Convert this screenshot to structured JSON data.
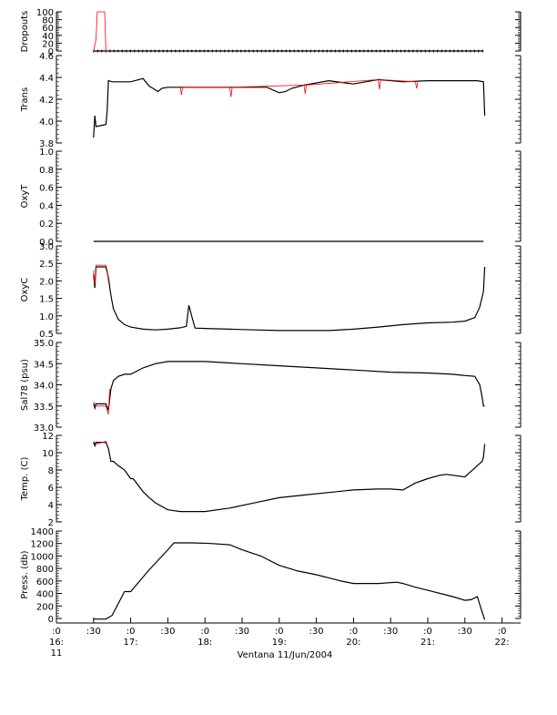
{
  "chart_data": {
    "type": "line",
    "title": "",
    "xlabel": "Ventana 11/Jun/2004",
    "x_ticks": [
      {
        "t": 0,
        "top": ":0",
        "mid": "16:",
        "bot": "11"
      },
      {
        "t": 30,
        "top": ":30",
        "mid": "",
        "bot": ""
      },
      {
        "t": 60,
        "top": ":0",
        "mid": "17:",
        "bot": ""
      },
      {
        "t": 90,
        "top": ":30",
        "mid": "",
        "bot": ""
      },
      {
        "t": 120,
        "top": ":0",
        "mid": "18:",
        "bot": ""
      },
      {
        "t": 150,
        "top": ":30",
        "mid": "",
        "bot": ""
      },
      {
        "t": 180,
        "top": ":0",
        "mid": "19:",
        "bot": ""
      },
      {
        "t": 210,
        "top": ":30",
        "mid": "",
        "bot": ""
      },
      {
        "t": 240,
        "top": ":0",
        "mid": "20:",
        "bot": ""
      },
      {
        "t": 270,
        "top": ":30",
        "mid": "",
        "bot": ""
      },
      {
        "t": 300,
        "top": ":0",
        "mid": "21:",
        "bot": ""
      },
      {
        "t": 330,
        "top": ":30",
        "mid": "",
        "bot": ""
      },
      {
        "t": 360,
        "top": ":0",
        "mid": "22:",
        "bot": ""
      }
    ],
    "xlim_minutes_after_1600": [
      0,
      375
    ],
    "colors": {
      "primary": "#000000",
      "secondary": "#ff0000"
    },
    "panels": [
      {
        "ylabel": "Dropouts",
        "ylim": [
          0,
          100
        ],
        "yticks": [
          0,
          20,
          40,
          60,
          80,
          100
        ],
        "ytick_labels": [
          "0",
          "20",
          "40",
          "60",
          "80",
          "100"
        ],
        "series": [
          {
            "color": "black",
            "x": [
              30,
              40,
              41,
              345
            ],
            "y": [
              0,
              0,
              0,
              0
            ],
            "markers": true
          },
          {
            "color": "red",
            "x": [
              30,
              32,
              33,
              39,
              40,
              41
            ],
            "y": [
              0,
              30,
              100,
              100,
              0,
              0
            ]
          }
        ]
      },
      {
        "ylabel": "Trans",
        "ylim": [
          3.8,
          4.6
        ],
        "yticks": [
          3.8,
          4.0,
          4.2,
          4.4,
          4.6
        ],
        "ytick_labels": [
          "3.8",
          "4.0",
          "4.2",
          "4.4",
          "4.6"
        ],
        "series": [
          {
            "color": "black",
            "x": [
              30,
              31,
              32,
              40,
              41,
              42,
              45,
              60,
              70,
              75,
              78,
              82,
              85,
              90,
              100,
              120,
              150,
              170,
              180,
              185,
              190,
              200,
              220,
              240,
              260,
              280,
              300,
              320,
              340,
              345,
              346
            ],
            "y": [
              3.85,
              4.05,
              3.95,
              3.97,
              4.1,
              4.37,
              4.36,
              4.36,
              4.39,
              4.32,
              4.3,
              4.27,
              4.3,
              4.31,
              4.31,
              4.31,
              4.31,
              4.31,
              4.26,
              4.27,
              4.3,
              4.33,
              4.37,
              4.34,
              4.38,
              4.36,
              4.37,
              4.37,
              4.37,
              4.36,
              4.05
            ]
          },
          {
            "color": "red",
            "x": [
              100,
              101,
              102,
              140,
              141,
              142,
              200,
              201,
              202,
              260,
              261,
              262,
              290,
              291,
              292
            ],
            "y": [
              4.31,
              4.24,
              4.31,
              4.31,
              4.22,
              4.31,
              4.33,
              4.25,
              4.33,
              4.38,
              4.29,
              4.38,
              4.36,
              4.3,
              4.36
            ]
          }
        ]
      },
      {
        "ylabel": "OxyT",
        "ylim": [
          0.0,
          1.0
        ],
        "yticks": [
          0.0,
          0.2,
          0.4,
          0.6,
          0.8,
          1.0
        ],
        "ytick_labels": [
          "0.0",
          "0.2",
          "0.4",
          "0.6",
          "0.8",
          "1.0"
        ],
        "series": [
          {
            "color": "black",
            "x": [
              30,
              345
            ],
            "y": [
              0.0,
              0.0
            ]
          }
        ]
      },
      {
        "ylabel": "OxyC",
        "ylim": [
          0.5,
          3.0
        ],
        "yticks": [
          0.5,
          1.0,
          1.5,
          2.0,
          2.5,
          3.0
        ],
        "ytick_labels": [
          "0.5",
          "1.0",
          "1.5",
          "2.0",
          "2.5",
          "3.0"
        ],
        "series": [
          {
            "color": "black",
            "x": [
              30,
              31,
              32,
              40,
              42,
              44,
              46,
              50,
              55,
              60,
              70,
              80,
              90,
              100,
              105,
              107,
              110,
              112,
              120,
              140,
              160,
              180,
              200,
              220,
              240,
              260,
              280,
              300,
              320,
              330,
              338,
              342,
              345,
              346
            ],
            "y": [
              2.2,
              1.8,
              2.4,
              2.4,
              2.1,
              1.6,
              1.2,
              0.9,
              0.75,
              0.68,
              0.62,
              0.6,
              0.62,
              0.66,
              0.7,
              1.3,
              0.9,
              0.65,
              0.64,
              0.62,
              0.6,
              0.58,
              0.58,
              0.58,
              0.62,
              0.68,
              0.75,
              0.8,
              0.82,
              0.85,
              0.95,
              1.25,
              1.7,
              2.4
            ]
          },
          {
            "color": "red",
            "x": [
              30,
              31,
              32,
              40,
              41,
              42
            ],
            "y": [
              2.3,
              1.9,
              2.45,
              2.45,
              2.3,
              2.0
            ]
          }
        ]
      },
      {
        "ylabel": "Sal78 (psu)",
        "ylim": [
          33.0,
          35.0
        ],
        "yticks": [
          33.0,
          33.5,
          34.0,
          34.5,
          35.0
        ],
        "ytick_labels": [
          "33.0",
          "33.5",
          "34.0",
          "34.5",
          "35.0"
        ],
        "series": [
          {
            "color": "black",
            "x": [
              30,
              31,
              32,
              40,
              42,
              44,
              46,
              50,
              55,
              60,
              70,
              80,
              90,
              100,
              120,
              150,
              180,
              210,
              240,
              270,
              300,
              320,
              330,
              338,
              342,
              344,
              345,
              346
            ],
            "y": [
              33.55,
              33.45,
              33.55,
              33.55,
              33.4,
              33.9,
              34.1,
              34.2,
              34.25,
              34.25,
              34.4,
              34.5,
              34.55,
              34.55,
              34.55,
              34.5,
              34.45,
              34.4,
              34.35,
              34.3,
              34.28,
              34.25,
              34.22,
              34.2,
              34.0,
              33.7,
              33.5,
              33.5
            ]
          },
          {
            "color": "red",
            "x": [
              30,
              32,
              40,
              42,
              43
            ],
            "y": [
              33.6,
              33.5,
              33.5,
              33.3,
              33.9
            ]
          }
        ]
      },
      {
        "ylabel": "Temp. (C)",
        "ylim": [
          2,
          12
        ],
        "yticks": [
          2,
          4,
          6,
          8,
          10,
          12
        ],
        "ytick_labels": [
          "2",
          "4",
          "6",
          "8",
          "10",
          "12"
        ],
        "series": [
          {
            "color": "black",
            "x": [
              30,
              31,
              32,
              40,
              42,
              44,
              46,
              50,
              55,
              60,
              62,
              70,
              75,
              80,
              90,
              100,
              110,
              120,
              140,
              160,
              180,
              200,
              220,
              240,
              260,
              270,
              280,
              290,
              300,
              310,
              315,
              320,
              330,
              340,
              344,
              345,
              346
            ],
            "y": [
              11.2,
              10.8,
              11.2,
              11.2,
              10.5,
              9.0,
              9.0,
              8.5,
              8.0,
              7.0,
              7.0,
              5.5,
              4.8,
              4.2,
              3.4,
              3.2,
              3.2,
              3.2,
              3.6,
              4.2,
              4.8,
              5.1,
              5.4,
              5.7,
              5.8,
              5.8,
              5.7,
              6.5,
              7.0,
              7.4,
              7.5,
              7.4,
              7.2,
              8.5,
              9.0,
              9.5,
              11.0
            ]
          },
          {
            "color": "red",
            "x": [
              30,
              32,
              40,
              41
            ],
            "y": [
              11.3,
              11.0,
              11.3,
              11.0
            ]
          }
        ]
      },
      {
        "ylabel": "Press. (db)",
        "ylim": [
          0,
          1400
        ],
        "yticks": [
          0,
          200,
          400,
          600,
          800,
          1000,
          1200,
          1400
        ],
        "ytick_labels": [
          "0",
          "200",
          "400",
          "600",
          "800",
          "1000",
          "1200",
          "1400"
        ],
        "series": [
          {
            "color": "black",
            "x": [
              30,
              40,
              45,
              55,
              58,
              60,
              75,
              90,
              95,
              110,
              125,
              140,
              150,
              165,
              180,
              195,
              210,
              220,
              230,
              240,
              260,
              275,
              280,
              290,
              300,
              320,
              330,
              335,
              340,
              344,
              346
            ],
            "y": [
              -10,
              -10,
              50,
              430,
              430,
              430,
              780,
              1100,
              1210,
              1210,
              1200,
              1180,
              1100,
              1000,
              850,
              760,
              700,
              650,
              600,
              560,
              560,
              580,
              560,
              500,
              450,
              350,
              290,
              300,
              350,
              100,
              -20
            ]
          }
        ]
      }
    ]
  }
}
